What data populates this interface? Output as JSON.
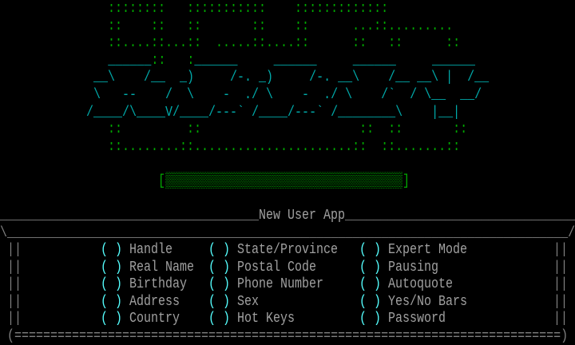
{
  "logo": {
    "lines": [
      "               ::::::::   :::::::::::    :::::::::::::",
      "               ::    ::   ::       ::    ::      ...::.........",
      "               ::....::...::  .....::....::      ::   ::      ::",
      "               ______::   :______     ______     ______     ______",
      "             __\\    /__  _)     /-. _)     /-. __\\    /__ __\\ |  /__",
      "             \\   --    /  \\    -  ./ \\    -  ./ \\    /`  / \\__  __/",
      "            /____/\\____V/____/---` /____/---` /________\\    |__|",
      "               ::         ::                      ::  ::       ::",
      "               ::........::......................::  ::.......::"
    ],
    "line_colors": [
      "green",
      "green",
      "green",
      "mixed",
      "cyan",
      "cyan",
      "cyan",
      "green",
      "green"
    ]
  },
  "progress": {
    "open": "[",
    "close": "]",
    "percent": 100
  },
  "panel": {
    "title": "New User App",
    "left_border": "||",
    "right_border": "||",
    "checkbox": "( )",
    "columns": [
      [
        "Handle",
        "Real Name",
        "Birthday",
        "Address",
        "Country"
      ],
      [
        "State/Province",
        "Postal Code",
        "Phone Number",
        "Sex",
        "Hot Keys"
      ],
      [
        "Expert Mode",
        "Pausing",
        "Autoquote",
        "Yes/No Bars",
        "Password"
      ]
    ]
  },
  "colors": {
    "green": "#00aa00",
    "cyan": "#00aaaa",
    "bright_cyan": "#55ffff",
    "text": "#a0a0a0",
    "background": "#000000"
  }
}
